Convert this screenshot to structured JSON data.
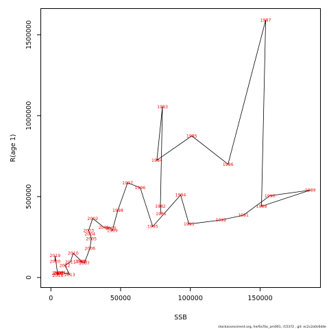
{
  "chart_data": {
    "type": "scatter",
    "xlabel": "SSB",
    "ylabel": "R(age 1)",
    "xlim": [
      -7000,
      193000
    ],
    "ylim": [
      -60000,
      1660000
    ],
    "xticks": [
      {
        "value": 0,
        "label": "0"
      },
      {
        "value": 50000,
        "label": "50000"
      },
      {
        "value": 100000,
        "label": "100000"
      },
      {
        "value": 150000,
        "label": "150000"
      }
    ],
    "yticks": [
      {
        "value": 0,
        "label": "0"
      },
      {
        "value": 500000,
        "label": "500000"
      },
      {
        "value": 1000000,
        "label": "1000000"
      },
      {
        "value": 1500000,
        "label": "1500000"
      }
    ],
    "connected": true,
    "colors": {
      "points": "#ff0000",
      "line": "#000000",
      "axes": "#000000"
    },
    "points": [
      {
        "label": "1981",
        "x": 79000,
        "y": 395000
      },
      {
        "label": "1982",
        "x": 78500,
        "y": 440000
      },
      {
        "label": "1983",
        "x": 80000,
        "y": 1055000
      },
      {
        "label": "1984",
        "x": 76000,
        "y": 725000
      },
      {
        "label": "1985",
        "x": 101000,
        "y": 875000
      },
      {
        "label": "1986",
        "x": 127000,
        "y": 700000
      },
      {
        "label": "1987",
        "x": 154000,
        "y": 1590000
      },
      {
        "label": "1988",
        "x": 151000,
        "y": 440000
      },
      {
        "label": "1989",
        "x": 186000,
        "y": 540000
      },
      {
        "label": "1990",
        "x": 157000,
        "y": 505000
      },
      {
        "label": "1991",
        "x": 138000,
        "y": 385000
      },
      {
        "label": "1992",
        "x": 122000,
        "y": 355000
      },
      {
        "label": "1993",
        "x": 99000,
        "y": 330000
      },
      {
        "label": "1994",
        "x": 93000,
        "y": 510000
      },
      {
        "label": "1995",
        "x": 73000,
        "y": 315000
      },
      {
        "label": "1996",
        "x": 64000,
        "y": 555000
      },
      {
        "label": "1997",
        "x": 55000,
        "y": 585000
      },
      {
        "label": "1998",
        "x": 48000,
        "y": 415000
      },
      {
        "label": "1999",
        "x": 44000,
        "y": 290000
      },
      {
        "label": "2000",
        "x": 43000,
        "y": 305000
      },
      {
        "label": "2001",
        "x": 38000,
        "y": 310000
      },
      {
        "label": "2002",
        "x": 30000,
        "y": 365000
      },
      {
        "label": "2003",
        "x": 27000,
        "y": 290000
      },
      {
        "label": "2004",
        "x": 28000,
        "y": 270000
      },
      {
        "label": "2005",
        "x": 29000,
        "y": 240000
      },
      {
        "label": "2006",
        "x": 28000,
        "y": 180000
      },
      {
        "label": "2007",
        "x": 24000,
        "y": 90000
      },
      {
        "label": "2008",
        "x": 21000,
        "y": 100000
      },
      {
        "label": "2009",
        "x": 22000,
        "y": 100000
      },
      {
        "label": "2010",
        "x": 16000,
        "y": 150000
      },
      {
        "label": "2011",
        "x": 14000,
        "y": 95000
      },
      {
        "label": "2012",
        "x": 10000,
        "y": 75000
      },
      {
        "label": "2013",
        "x": 13500,
        "y": 18000
      },
      {
        "label": "2014",
        "x": 9000,
        "y": 30000
      },
      {
        "label": "2015",
        "x": 6000,
        "y": 28000
      },
      {
        "label": "2016",
        "x": 4500,
        "y": 25000
      },
      {
        "label": "2017",
        "x": 5500,
        "y": 28000
      },
      {
        "label": "2018",
        "x": 5000,
        "y": 13000
      },
      {
        "label": "2019",
        "x": 3000,
        "y": 135000
      },
      {
        "label": "2020",
        "x": 3000,
        "y": 100000
      }
    ]
  },
  "footer": {
    "text": "stockassessment.org, her6a7bc_am001, r15372 , git: ec2c2a0c6dde"
  }
}
